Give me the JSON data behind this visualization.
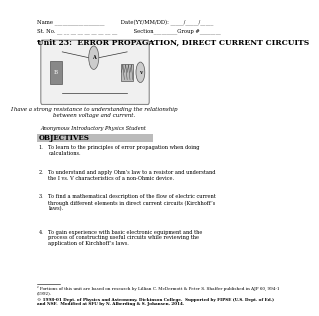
{
  "background_color": "#ffffff",
  "page_width": 2.31,
  "page_height": 3.0,
  "header_lines": [
    "Name ___________________          Date(YY/MM/DD): _____/_____/_____",
    "St. No. __ __ __ __ __ __ __ __ __          Section_________Group #________"
  ],
  "title": "Unit 23:  ERROR PROPAGATION, DIRECT CURRENT CIRCUITS",
  "title_superscript": "2",
  "quote_text": "I have a strong resistance to understanding the relationship\nbetween voltage and current.",
  "quote_attribution": "Anonymous Introductory Physics Student",
  "objectives_header": "OBJECTIVES",
  "objectives": [
    "To learn to the principles of error propagation when doing\ncalculations.",
    "To understand and apply Ohm’s law to a resistor and understand\nthe I vs. V characteristics of a non-Ohmic device.",
    "To find a mathematical description of the flow of electric current\nthrough different elements in direct current circuits (Kirchhoff’s\nlaws).",
    "To gain experience with basic electronic equipment and the\nprocess of constructing useful circuits while reviewing the\napplication of Kirchhoff’s laws."
  ],
  "footnote1": "² Portions of this unit are based on research by Lillian C. McDermott & Peter S. Shaffer published in AJP 60, 994-1\n(1992).",
  "footnote2": "© 1998-01 Dept. of Physics and Astronomy, Dickinson College.  Supported by FIPSE (U.S. Dept. of Ed.)\nand NSF.  Modified at SFU by N. Alberding & S. Johansen, 2014.",
  "objectives_header_bg": "#bbbbbb"
}
